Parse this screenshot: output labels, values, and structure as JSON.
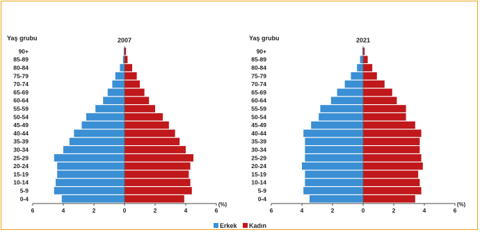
{
  "colors": {
    "male": "#3b8fd4",
    "female": "#c0181b",
    "border": "#e8a317"
  },
  "legend": {
    "male": "Erkek",
    "female": "Kadın"
  },
  "chart_data": [
    {
      "type": "bar",
      "orientation": "horizontal-population-pyramid",
      "title": "2007",
      "ylabel": "Yaş grubu",
      "xlabel": "(%)",
      "xlim": [
        -6,
        6
      ],
      "xticks": [
        "6",
        "4",
        "2",
        "0",
        "2",
        "4",
        "6"
      ],
      "categories": [
        "0-4",
        "5-9",
        "10-14",
        "15-19",
        "20-24",
        "25-29",
        "30-34",
        "35-39",
        "40-44",
        "45-49",
        "50-54",
        "55-59",
        "60-64",
        "65-69",
        "70-74",
        "75-79",
        "80-84",
        "85-89",
        "90+"
      ],
      "series": [
        {
          "name": "Erkek",
          "values": [
            4.1,
            4.6,
            4.5,
            4.4,
            4.4,
            4.6,
            4.0,
            3.6,
            3.3,
            2.8,
            2.5,
            1.9,
            1.4,
            1.1,
            0.8,
            0.6,
            0.3,
            0.1,
            0.05
          ]
        },
        {
          "name": "Kadın",
          "values": [
            3.9,
            4.4,
            4.3,
            4.2,
            4.3,
            4.5,
            4.0,
            3.6,
            3.3,
            2.9,
            2.5,
            2.0,
            1.6,
            1.3,
            1.0,
            0.8,
            0.5,
            0.2,
            0.1
          ]
        }
      ]
    },
    {
      "type": "bar",
      "orientation": "horizontal-population-pyramid",
      "title": "2021",
      "ylabel": "Yaş grubu",
      "xlabel": "(%)",
      "xlim": [
        -6,
        6
      ],
      "xticks": [
        "6",
        "4",
        "2",
        "0",
        "2",
        "4",
        "6"
      ],
      "categories": [
        "0-4",
        "5-9",
        "10-14",
        "15-19",
        "20-24",
        "25-29",
        "30-34",
        "35-39",
        "40-44",
        "45-49",
        "50-54",
        "55-59",
        "60-64",
        "65-69",
        "70-74",
        "75-79",
        "80-84",
        "85-89",
        "90+"
      ],
      "series": [
        {
          "name": "Erkek",
          "values": [
            3.5,
            3.9,
            3.8,
            3.8,
            4.0,
            3.8,
            3.8,
            3.8,
            3.9,
            3.4,
            2.9,
            2.8,
            2.1,
            1.7,
            1.2,
            0.8,
            0.4,
            0.2,
            0.05
          ]
        },
        {
          "name": "Kadın",
          "values": [
            3.4,
            3.8,
            3.7,
            3.6,
            3.9,
            3.8,
            3.7,
            3.7,
            3.8,
            3.4,
            2.8,
            2.8,
            2.2,
            1.9,
            1.4,
            0.9,
            0.6,
            0.3,
            0.1
          ]
        }
      ]
    }
  ]
}
